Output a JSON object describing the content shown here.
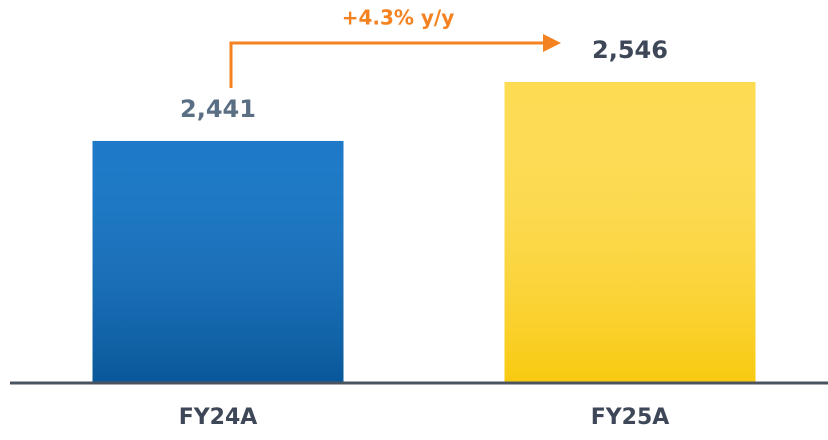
{
  "chart_data": {
    "type": "bar",
    "annotation": "+4.3% y/y",
    "categories": [
      "FY24A",
      "FY25A"
    ],
    "values": [
      2441,
      2546
    ],
    "value_labels": [
      "2,441",
      "2,546"
    ],
    "colors": [
      "#0a6fc4",
      "#fdd226"
    ],
    "ylim": [
      2010,
      2692
    ]
  }
}
